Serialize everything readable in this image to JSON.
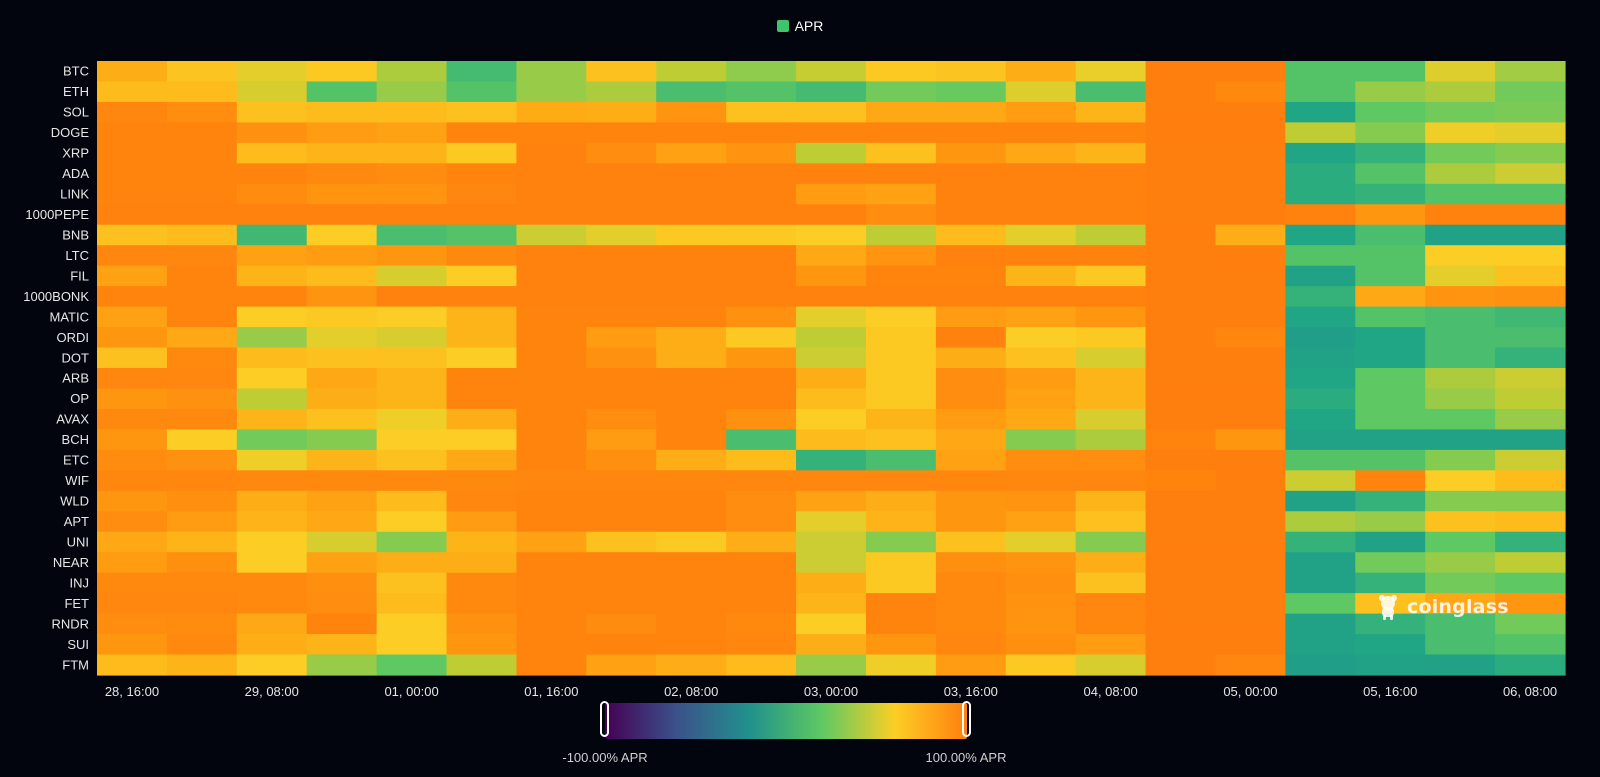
{
  "legend": {
    "label": "APR",
    "swatch_color": "#3ec46d"
  },
  "visual_map": {
    "min_label": "-100.00% APR",
    "max_label": "100.00% APR",
    "stops": [
      "#440154",
      "#3b528b",
      "#21918c",
      "#5ec962",
      "#fcce25",
      "#ff7f0e"
    ]
  },
  "watermark": {
    "text": "coinglass",
    "icon": "coinglass-mascot-icon"
  },
  "chart_data": {
    "type": "heatmap",
    "title": "",
    "legend": [
      "APR"
    ],
    "value_range": [
      -100,
      100
    ],
    "grid": false,
    "y_categories": [
      "BTC",
      "ETH",
      "SOL",
      "DOGE",
      "XRP",
      "ADA",
      "LINK",
      "1000PEPE",
      "BNB",
      "LTC",
      "FIL",
      "1000BONK",
      "MATIC",
      "ORDI",
      "DOT",
      "ARB",
      "OP",
      "AVAX",
      "BCH",
      "ETC",
      "WIF",
      "WLD",
      "APT",
      "UNI",
      "NEAR",
      "INJ",
      "FET",
      "RNDR",
      "SUI",
      "FTM"
    ],
    "x_tick_labels": [
      "28, 16:00",
      "29, 08:00",
      "01, 00:00",
      "01, 16:00",
      "02, 08:00",
      "03, 00:00",
      "03, 16:00",
      "04, 08:00",
      "05, 00:00",
      "05, 16:00",
      "06, 08:00"
    ],
    "x_tick_every": 2,
    "color_stops": [
      {
        "v": 0,
        "color": "#ff7f0e"
      },
      {
        "v": 20,
        "color": "#ff9610"
      },
      {
        "v": 30,
        "color": "#fdb419"
      },
      {
        "v": 38,
        "color": "#fcce25"
      },
      {
        "v": 48,
        "color": "#bfcd35"
      },
      {
        "v": 58,
        "color": "#5ec962"
      },
      {
        "v": 70,
        "color": "#21a685"
      },
      {
        "v": 80,
        "color": "#21918c"
      },
      {
        "v": 90,
        "color": "#3b528b"
      },
      {
        "v": 100,
        "color": "#440154"
      }
    ],
    "rows": [
      [
        28,
        35,
        42,
        36,
        50,
        63,
        52,
        34,
        48,
        53,
        47,
        36,
        35,
        28,
        41,
        0,
        0,
        60,
        60,
        43,
        51
      ],
      [
        32,
        32,
        44,
        60,
        52,
        60,
        52,
        50,
        62,
        60,
        63,
        56,
        57,
        43,
        62,
        0,
        8,
        60,
        52,
        50,
        56
      ],
      [
        6,
        12,
        34,
        32,
        32,
        34,
        27,
        28,
        18,
        34,
        34,
        26,
        26,
        22,
        30,
        0,
        0,
        70,
        58,
        56,
        55
      ],
      [
        4,
        4,
        16,
        22,
        24,
        4,
        4,
        4,
        4,
        4,
        4,
        4,
        4,
        4,
        4,
        0,
        0,
        48,
        54,
        40,
        42
      ],
      [
        4,
        4,
        32,
        30,
        30,
        36,
        2,
        12,
        24,
        18,
        48,
        34,
        20,
        26,
        30,
        0,
        0,
        70,
        66,
        56,
        54
      ],
      [
        4,
        4,
        4,
        8,
        10,
        4,
        2,
        2,
        2,
        2,
        2,
        2,
        2,
        2,
        2,
        0,
        0,
        68,
        60,
        50,
        46
      ],
      [
        4,
        4,
        10,
        18,
        18,
        6,
        2,
        2,
        2,
        2,
        22,
        24,
        2,
        2,
        2,
        0,
        0,
        68,
        66,
        60,
        60
      ],
      [
        2,
        2,
        2,
        2,
        2,
        2,
        2,
        2,
        2,
        2,
        2,
        12,
        2,
        2,
        2,
        0,
        0,
        2,
        20,
        2,
        2
      ],
      [
        34,
        32,
        64,
        38,
        62,
        60,
        46,
        42,
        36,
        36,
        38,
        48,
        32,
        42,
        48,
        0,
        28,
        70,
        62,
        72,
        72
      ],
      [
        6,
        6,
        24,
        22,
        20,
        8,
        2,
        2,
        2,
        2,
        26,
        18,
        2,
        2,
        2,
        0,
        0,
        60,
        60,
        38,
        38
      ],
      [
        24,
        4,
        30,
        32,
        44,
        38,
        2,
        2,
        2,
        2,
        20,
        4,
        4,
        30,
        36,
        0,
        0,
        72,
        60,
        42,
        34
      ],
      [
        4,
        4,
        4,
        18,
        2,
        2,
        2,
        2,
        2,
        2,
        2,
        2,
        2,
        2,
        2,
        0,
        0,
        66,
        26,
        18,
        16
      ],
      [
        24,
        4,
        38,
        36,
        38,
        30,
        4,
        4,
        4,
        16,
        42,
        38,
        22,
        24,
        20,
        0,
        0,
        70,
        60,
        62,
        64
      ],
      [
        20,
        26,
        52,
        42,
        44,
        30,
        4,
        22,
        28,
        36,
        48,
        36,
        2,
        38,
        36,
        0,
        6,
        74,
        70,
        62,
        62
      ],
      [
        34,
        8,
        32,
        34,
        34,
        38,
        4,
        16,
        28,
        20,
        46,
        36,
        28,
        34,
        44,
        0,
        0,
        72,
        70,
        62,
        66
      ],
      [
        6,
        6,
        38,
        26,
        30,
        4,
        4,
        4,
        4,
        4,
        28,
        36,
        12,
        22,
        30,
        0,
        0,
        70,
        58,
        50,
        46
      ],
      [
        20,
        16,
        48,
        28,
        30,
        4,
        4,
        4,
        4,
        4,
        32,
        36,
        12,
        24,
        30,
        0,
        0,
        68,
        58,
        52,
        48
      ],
      [
        8,
        8,
        30,
        34,
        40,
        28,
        4,
        12,
        4,
        16,
        38,
        30,
        22,
        26,
        44,
        0,
        0,
        70,
        58,
        58,
        52
      ],
      [
        20,
        38,
        56,
        54,
        38,
        38,
        4,
        22,
        4,
        62,
        32,
        34,
        26,
        54,
        50,
        4,
        20,
        72,
        72,
        72,
        72
      ],
      [
        10,
        16,
        40,
        30,
        34,
        26,
        4,
        14,
        28,
        32,
        66,
        62,
        24,
        12,
        12,
        0,
        0,
        60,
        60,
        54,
        46
      ],
      [
        6,
        6,
        8,
        8,
        8,
        8,
        6,
        6,
        6,
        6,
        6,
        6,
        6,
        6,
        6,
        4,
        0,
        46,
        4,
        38,
        32
      ],
      [
        20,
        14,
        28,
        24,
        32,
        6,
        4,
        4,
        4,
        12,
        24,
        28,
        20,
        18,
        30,
        0,
        0,
        72,
        66,
        54,
        54
      ],
      [
        12,
        22,
        30,
        26,
        38,
        22,
        4,
        4,
        4,
        12,
        42,
        30,
        20,
        24,
        34,
        0,
        0,
        50,
        52,
        34,
        32
      ],
      [
        26,
        30,
        38,
        44,
        54,
        30,
        24,
        34,
        36,
        28,
        46,
        54,
        34,
        42,
        54,
        0,
        0,
        66,
        72,
        58,
        66
      ],
      [
        22,
        14,
        38,
        24,
        28,
        28,
        4,
        4,
        4,
        4,
        46,
        36,
        14,
        18,
        28,
        0,
        0,
        72,
        56,
        52,
        48
      ],
      [
        8,
        8,
        8,
        14,
        34,
        8,
        4,
        4,
        4,
        4,
        28,
        36,
        8,
        14,
        34,
        0,
        0,
        72,
        66,
        56,
        58
      ],
      [
        6,
        6,
        8,
        12,
        32,
        8,
        4,
        4,
        4,
        4,
        30,
        4,
        8,
        18,
        6,
        0,
        0,
        58,
        34,
        26,
        20
      ],
      [
        12,
        10,
        26,
        4,
        38,
        16,
        4,
        10,
        4,
        8,
        38,
        4,
        8,
        18,
        6,
        0,
        0,
        72,
        66,
        62,
        56
      ],
      [
        20,
        8,
        28,
        30,
        38,
        20,
        4,
        4,
        4,
        6,
        28,
        20,
        6,
        14,
        22,
        0,
        0,
        72,
        70,
        62,
        60
      ],
      [
        32,
        30,
        38,
        52,
        58,
        48,
        4,
        24,
        28,
        32,
        52,
        40,
        22,
        36,
        44,
        0,
        6,
        74,
        72,
        72,
        68
      ]
    ]
  }
}
